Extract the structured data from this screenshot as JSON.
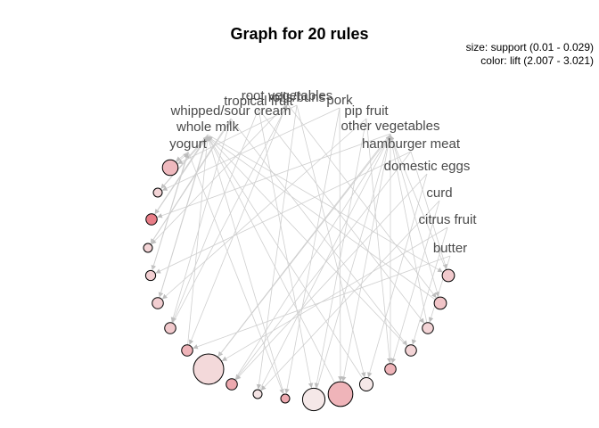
{
  "title": "Graph for 20 rules",
  "legend": {
    "size": "size: support (0.01 - 0.029)",
    "color": "color: lift (2.007 - 3.021)"
  },
  "colors": {
    "edge": "#cfcfcf",
    "arrow": "#bdbdbd",
    "node_stroke": "#000000"
  },
  "items": [
    "root vegetables",
    "tropical fruit",
    "rolls/buns",
    "pork",
    "whipped/sour cream",
    "pip fruit",
    "whole milk",
    "other vegetables",
    "yogurt",
    "hamburger meat",
    "domestic eggs",
    "curd",
    "citrus fruit",
    "butter"
  ],
  "rules": [
    {
      "id": 1,
      "support": 0.016,
      "lift": 2.45
    },
    {
      "id": 2,
      "support": 0.01,
      "lift": 2.2
    },
    {
      "id": 3,
      "support": 0.012,
      "lift": 3.02
    },
    {
      "id": 4,
      "support": 0.01,
      "lift": 2.2
    },
    {
      "id": 5,
      "support": 0.011,
      "lift": 2.25
    },
    {
      "id": 6,
      "support": 0.012,
      "lift": 2.25
    },
    {
      "id": 7,
      "support": 0.012,
      "lift": 2.3
    },
    {
      "id": 8,
      "support": 0.012,
      "lift": 2.5
    },
    {
      "id": 9,
      "support": 0.029,
      "lift": 2.15
    },
    {
      "id": 10,
      "support": 0.012,
      "lift": 2.6
    },
    {
      "id": 11,
      "support": 0.01,
      "lift": 2.05
    },
    {
      "id": 12,
      "support": 0.01,
      "lift": 2.6
    },
    {
      "id": 13,
      "support": 0.022,
      "lift": 2.01
    },
    {
      "id": 14,
      "support": 0.024,
      "lift": 2.5
    },
    {
      "id": 15,
      "support": 0.014,
      "lift": 2.01
    },
    {
      "id": 16,
      "support": 0.012,
      "lift": 2.5
    },
    {
      "id": 17,
      "support": 0.012,
      "lift": 2.2
    },
    {
      "id": 18,
      "support": 0.012,
      "lift": 2.2
    },
    {
      "id": 19,
      "support": 0.013,
      "lift": 2.35
    },
    {
      "id": 20,
      "support": 0.013,
      "lift": 2.3
    }
  ]
}
